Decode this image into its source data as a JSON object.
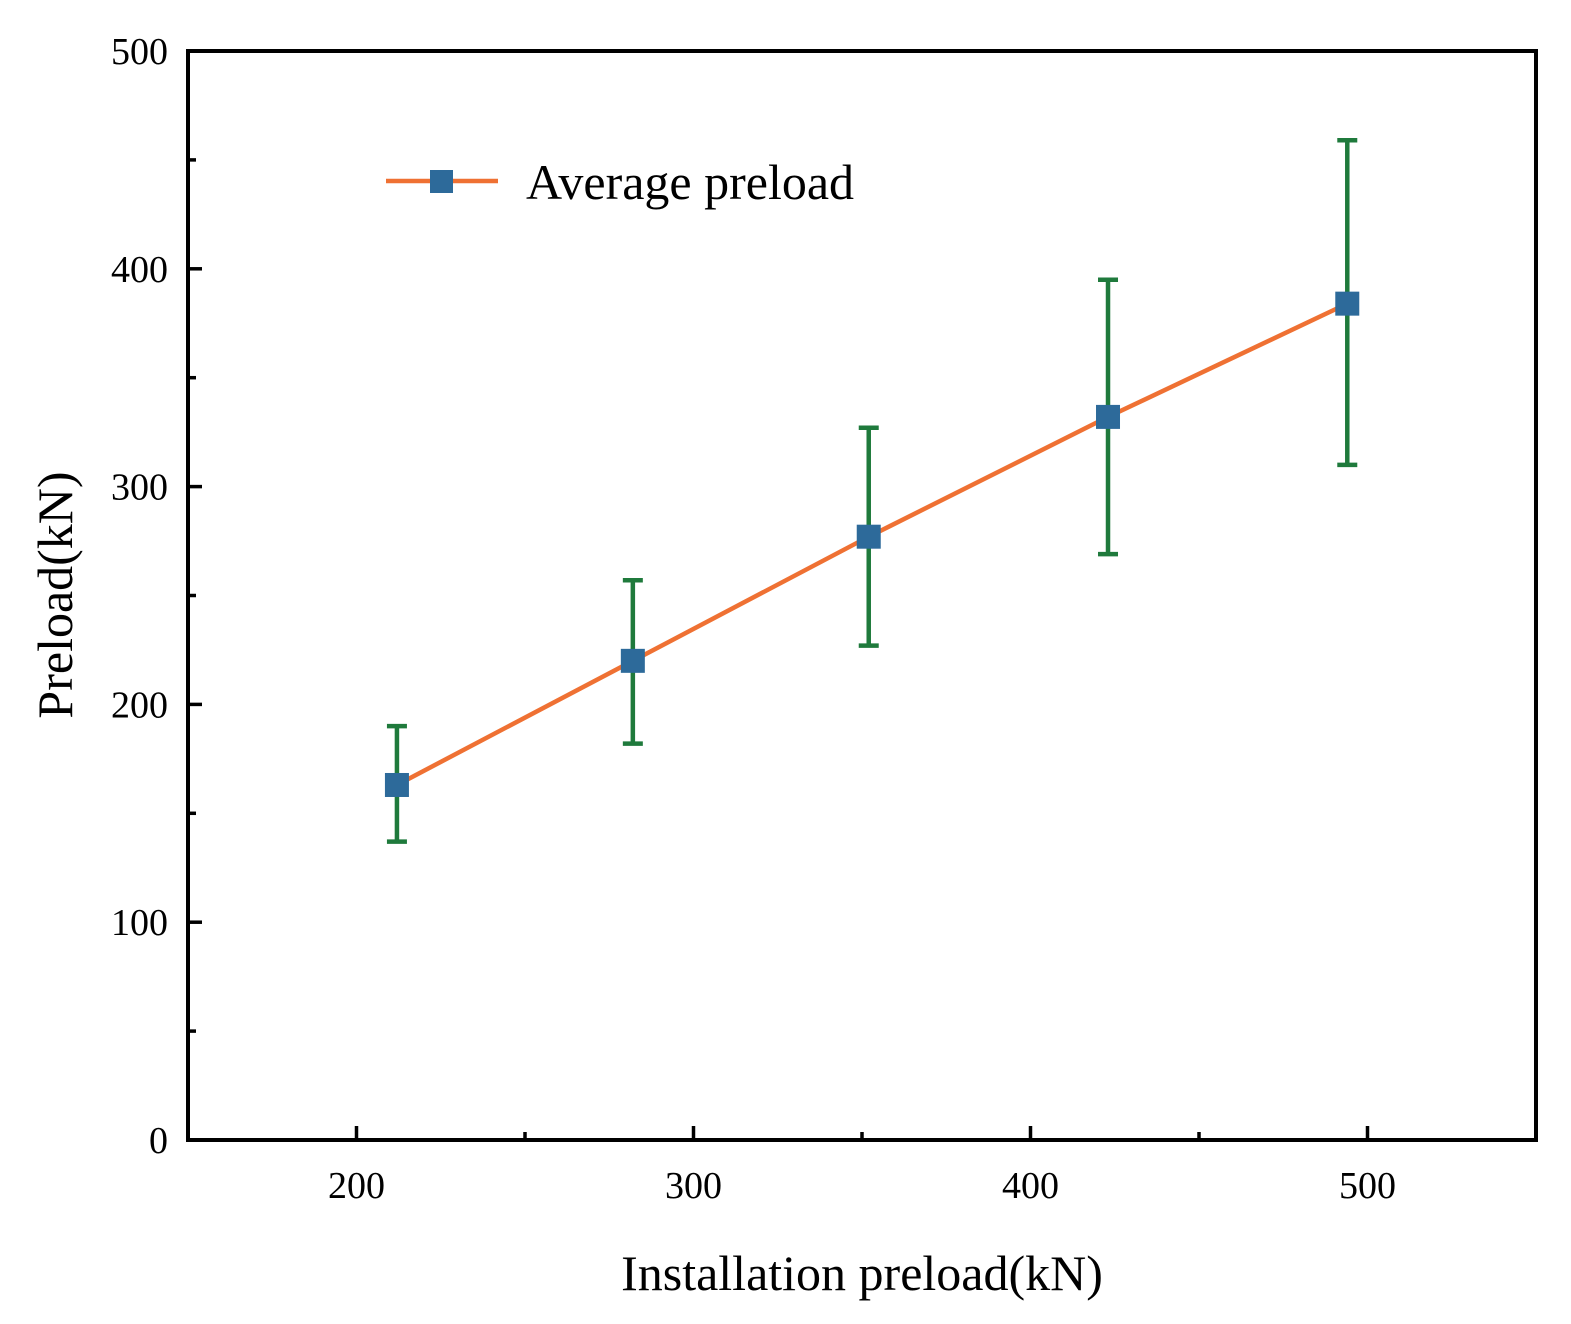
{
  "chart_data": {
    "type": "line",
    "title": "",
    "xlabel": "Installation preload(kN)",
    "ylabel": "Preload(kN)",
    "xlim": [
      150,
      550
    ],
    "ylim": [
      0,
      500
    ],
    "x_ticks": [
      200,
      300,
      400,
      500
    ],
    "x_minor_ticks": [
      250,
      350,
      450
    ],
    "y_ticks": [
      0,
      100,
      200,
      300,
      400,
      500
    ],
    "y_minor_ticks": [
      50,
      150,
      250,
      350,
      450
    ],
    "x_tick_labels": [
      "200",
      "300",
      "400",
      "500"
    ],
    "y_tick_labels": [
      "0",
      "100",
      "200",
      "300",
      "400",
      "500"
    ],
    "legend": {
      "position": "top-left",
      "entries": [
        "Average preload"
      ]
    },
    "series": [
      {
        "name": "Average preload",
        "x": [
          212,
          282,
          352,
          423,
          494
        ],
        "y": [
          163,
          220,
          277,
          332,
          384
        ],
        "error_low": [
          137,
          182,
          227,
          269,
          310
        ],
        "error_high": [
          190,
          257,
          327,
          395,
          459
        ]
      }
    ],
    "colors": {
      "line": "#ef7133",
      "marker": "#2d6a9a",
      "error_bar": "#1f7a3c",
      "axis": "#000000"
    }
  }
}
